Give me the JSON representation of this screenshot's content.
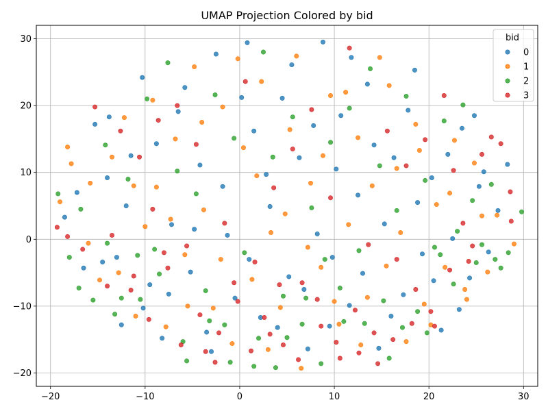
{
  "chart_data": {
    "type": "scatter",
    "title": "UMAP Projection Colored by bid",
    "xlabel": "",
    "ylabel": "",
    "xlim": [
      -21.5,
      31.5
    ],
    "ylim": [
      -22,
      32
    ],
    "x_ticks": [
      -20,
      -10,
      0,
      10,
      20,
      30
    ],
    "y_ticks": [
      -20,
      -10,
      0,
      10,
      20,
      30
    ],
    "x_tick_labels": [
      "−20",
      "−10",
      "0",
      "10",
      "20",
      "30"
    ],
    "y_tick_labels": [
      "−20",
      "−10",
      "0",
      "10",
      "20",
      "30"
    ],
    "grid": true,
    "legend": {
      "title": "bid",
      "position": "top-right"
    },
    "series": [
      {
        "name": "0",
        "color": "#1f77b4",
        "points": [
          [
            -18.5,
            3.3
          ],
          [
            -16.5,
            -4.3
          ],
          [
            -15.3,
            17.2
          ],
          [
            -14.0,
            9.2
          ],
          [
            -13.0,
            -2.7
          ],
          [
            -12.5,
            -12.8
          ],
          [
            -11.5,
            12.5
          ],
          [
            -10.3,
            24.2
          ],
          [
            -9.5,
            -6.8
          ],
          [
            -8.2,
            -14.8
          ],
          [
            -7.2,
            2.2
          ],
          [
            -6.5,
            19.1
          ],
          [
            -5.2,
            -4.9
          ],
          [
            -4.2,
            11.1
          ],
          [
            -3.5,
            -13.9
          ],
          [
            -2.5,
            27.7
          ],
          [
            -1.3,
            0.6
          ],
          [
            -0.5,
            -8.8
          ],
          [
            0.8,
            29.4
          ],
          [
            1.5,
            16.2
          ],
          [
            2.2,
            -11.7
          ],
          [
            3.2,
            4.9
          ],
          [
            4.5,
            21.1
          ],
          [
            5.2,
            -5.6
          ],
          [
            6.3,
            12.2
          ],
          [
            7.2,
            -16.4
          ],
          [
            8.2,
            0.8
          ],
          [
            8.8,
            29.5
          ],
          [
            9.8,
            -2.7
          ],
          [
            10.7,
            18.5
          ],
          [
            11.6,
            -9.9
          ],
          [
            12.5,
            6.6
          ],
          [
            13.5,
            23.2
          ],
          [
            14.7,
            -16.3
          ],
          [
            15.3,
            2.3
          ],
          [
            16.3,
            12.2
          ],
          [
            17.3,
            -8.3
          ],
          [
            18.5,
            25.3
          ],
          [
            19.3,
            -2.2
          ],
          [
            20.3,
            9.2
          ],
          [
            21.3,
            -13.6
          ],
          [
            22.5,
            0.1
          ],
          [
            23.5,
            16.6
          ],
          [
            24.3,
            -5.8
          ],
          [
            25.3,
            7.9
          ],
          [
            26.3,
            -1.9
          ],
          [
            27.3,
            4.3
          ],
          [
            28.3,
            11.2
          ],
          [
            -17.2,
            7.0
          ],
          [
            -14.5,
            -3.4
          ],
          [
            -13.8,
            18.3
          ],
          [
            -12.0,
            5.0
          ],
          [
            -10.2,
            -10.3
          ],
          [
            -8.8,
            14.3
          ],
          [
            -7.5,
            -8.2
          ],
          [
            -5.8,
            22.7
          ],
          [
            -4.8,
            1.5
          ],
          [
            -3.0,
            -16.8
          ],
          [
            -1.8,
            7.9
          ],
          [
            0.2,
            21.2
          ],
          [
            1.0,
            -3.0
          ],
          [
            2.8,
            9.7
          ],
          [
            4.0,
            -13.2
          ],
          [
            5.5,
            26.1
          ],
          [
            6.8,
            -7.5
          ],
          [
            7.8,
            17.0
          ],
          [
            9.5,
            -13.0
          ],
          [
            10.2,
            10.5
          ],
          [
            11.8,
            27.2
          ],
          [
            13.0,
            -5.1
          ],
          [
            14.2,
            14.1
          ],
          [
            16.0,
            -11.5
          ],
          [
            17.8,
            19.3
          ],
          [
            18.8,
            5.5
          ],
          [
            20.5,
            -6.2
          ],
          [
            22.0,
            12.7
          ],
          [
            23.2,
            -10.5
          ],
          [
            24.8,
            18.5
          ],
          [
            25.8,
            10.1
          ]
        ]
      },
      {
        "name": "1",
        "color": "#ff7f0e",
        "points": [
          [
            -19.0,
            5.6
          ],
          [
            -17.8,
            11.3
          ],
          [
            -16.0,
            -0.6
          ],
          [
            -14.8,
            -6.1
          ],
          [
            -13.5,
            12.3
          ],
          [
            -12.2,
            18.2
          ],
          [
            -11.0,
            -11.5
          ],
          [
            -10.0,
            1.9
          ],
          [
            -8.8,
            7.8
          ],
          [
            -7.8,
            -13.1
          ],
          [
            -6.8,
            15.0
          ],
          [
            -5.8,
            -2.3
          ],
          [
            -4.8,
            25.8
          ],
          [
            -3.8,
            4.4
          ],
          [
            -2.8,
            -10.3
          ],
          [
            -1.8,
            19.8
          ],
          [
            -0.8,
            -15.6
          ],
          [
            0.4,
            13.7
          ],
          [
            1.3,
            -6.0
          ],
          [
            2.3,
            23.6
          ],
          [
            3.3,
            1.0
          ],
          [
            4.3,
            -10.2
          ],
          [
            5.3,
            16.4
          ],
          [
            6.5,
            -19.3
          ],
          [
            7.5,
            8.4
          ],
          [
            8.6,
            -4.2
          ],
          [
            9.6,
            21.5
          ],
          [
            10.5,
            -12.7
          ],
          [
            11.5,
            2.2
          ],
          [
            12.5,
            15.2
          ],
          [
            13.5,
            -8.7
          ],
          [
            14.8,
            27.2
          ],
          [
            15.5,
            -4.0
          ],
          [
            16.6,
            10.6
          ],
          [
            17.6,
            -15.3
          ],
          [
            18.6,
            17.2
          ],
          [
            19.5,
            -9.7
          ],
          [
            20.8,
            5.2
          ],
          [
            21.7,
            -4.2
          ],
          [
            22.7,
            14.8
          ],
          [
            23.8,
            -7.5
          ],
          [
            24.8,
            11.4
          ],
          [
            25.6,
            3.5
          ],
          [
            27.2,
            3.6
          ],
          [
            29.0,
            -0.7
          ],
          [
            -18.2,
            13.8
          ],
          [
            -15.8,
            8.4
          ],
          [
            -12.8,
            -5.0
          ],
          [
            -11.2,
            8.0
          ],
          [
            -9.2,
            20.8
          ],
          [
            -7.3,
            3.0
          ],
          [
            -5.5,
            -10.0
          ],
          [
            -4.0,
            17.5
          ],
          [
            -2.0,
            -3.0
          ],
          [
            -0.2,
            27.0
          ],
          [
            1.8,
            9.5
          ],
          [
            3.0,
            -16.5
          ],
          [
            4.8,
            3.8
          ],
          [
            6.0,
            27.4
          ],
          [
            7.2,
            -1.2
          ],
          [
            8.8,
            12.5
          ],
          [
            10.0,
            -9.3
          ],
          [
            11.2,
            22.0
          ],
          [
            12.8,
            -15.8
          ],
          [
            14.0,
            8.0
          ],
          [
            15.8,
            23.0
          ],
          [
            17.0,
            1.0
          ],
          [
            19.0,
            13.3
          ],
          [
            20.2,
            -12.8
          ],
          [
            22.2,
            6.9
          ],
          [
            24.0,
            -9.0
          ],
          [
            26.2,
            -4.9
          ]
        ]
      },
      {
        "name": "2",
        "color": "#2ca02c",
        "points": [
          [
            -19.2,
            6.8
          ],
          [
            -18.0,
            -2.7
          ],
          [
            -16.8,
            4.5
          ],
          [
            -15.5,
            -9.1
          ],
          [
            -14.2,
            14.1
          ],
          [
            -13.2,
            -11.2
          ],
          [
            -11.8,
            9.0
          ],
          [
            -10.8,
            -2.4
          ],
          [
            -9.8,
            21.0
          ],
          [
            -8.5,
            -5.2
          ],
          [
            -7.6,
            26.4
          ],
          [
            -6.6,
            10.2
          ],
          [
            -5.6,
            -18.2
          ],
          [
            -4.6,
            6.8
          ],
          [
            -3.6,
            -7.7
          ],
          [
            -2.6,
            21.6
          ],
          [
            -1.6,
            -12.8
          ],
          [
            -0.6,
            15.1
          ],
          [
            0.5,
            -2.0
          ],
          [
            1.5,
            -19.0
          ],
          [
            2.5,
            28.0
          ],
          [
            3.5,
            12.3
          ],
          [
            4.6,
            -8.5
          ],
          [
            5.6,
            18.3
          ],
          [
            6.6,
            -12.7
          ],
          [
            7.6,
            4.7
          ],
          [
            8.6,
            -18.6
          ],
          [
            9.6,
            14.5
          ],
          [
            10.6,
            -7.3
          ],
          [
            11.6,
            19.6
          ],
          [
            12.6,
            -1.7
          ],
          [
            13.8,
            25.5
          ],
          [
            14.8,
            11.0
          ],
          [
            15.8,
            -17.8
          ],
          [
            16.6,
            4.3
          ],
          [
            17.6,
            21.4
          ],
          [
            18.8,
            -10.8
          ],
          [
            19.6,
            8.8
          ],
          [
            20.6,
            -1.2
          ],
          [
            21.6,
            17.7
          ],
          [
            22.6,
            -6.7
          ],
          [
            23.6,
            20.1
          ],
          [
            24.6,
            5.8
          ],
          [
            25.6,
            -0.8
          ],
          [
            26.6,
            8.2
          ],
          [
            27.6,
            -4.3
          ],
          [
            28.4,
            -2.0
          ],
          [
            29.8,
            4.1
          ],
          [
            -17.0,
            -7.3
          ],
          [
            -14.0,
            -0.6
          ],
          [
            -12.5,
            -8.8
          ],
          [
            -10.5,
            -9.0
          ],
          [
            -9.0,
            -1.5
          ],
          [
            -6.0,
            -15.3
          ],
          [
            -3.2,
            -12.2
          ],
          [
            -1.0,
            -18.4
          ],
          [
            2.0,
            -14.8
          ],
          [
            3.8,
            -19.2
          ],
          [
            5.0,
            -14.7
          ],
          [
            7.0,
            -8.8
          ],
          [
            9.0,
            -3.0
          ],
          [
            11.0,
            -12.3
          ],
          [
            13.2,
            -12.6
          ],
          [
            15.2,
            -9.2
          ],
          [
            17.2,
            -13.2
          ],
          [
            19.8,
            -14.0
          ],
          [
            21.2,
            -2.3
          ],
          [
            23.0,
            1.2
          ],
          [
            25.0,
            -3.5
          ],
          [
            27.0,
            -3.0
          ]
        ]
      },
      {
        "name": "3",
        "color": "#d62728",
        "points": [
          [
            -19.3,
            1.8
          ],
          [
            -18.2,
            0.4
          ],
          [
            -16.6,
            -1.5
          ],
          [
            -15.3,
            19.8
          ],
          [
            -14.0,
            -7.0
          ],
          [
            -12.6,
            16.2
          ],
          [
            -11.5,
            -7.6
          ],
          [
            -10.6,
            12.3
          ],
          [
            -9.6,
            -12.0
          ],
          [
            -8.6,
            17.8
          ],
          [
            -7.6,
            -4.3
          ],
          [
            -6.6,
            20.0
          ],
          [
            -5.6,
            -1.0
          ],
          [
            -4.6,
            14.2
          ],
          [
            -3.6,
            -16.8
          ],
          [
            -2.6,
            -18.4
          ],
          [
            -1.6,
            2.4
          ],
          [
            -0.6,
            -6.5
          ],
          [
            0.6,
            23.6
          ],
          [
            1.6,
            -3.4
          ],
          [
            2.6,
            -11.7
          ],
          [
            3.6,
            7.7
          ],
          [
            4.6,
            -15.8
          ],
          [
            5.6,
            13.5
          ],
          [
            6.6,
            -6.5
          ],
          [
            7.6,
            19.4
          ],
          [
            8.6,
            -13.0
          ],
          [
            9.6,
            6.2
          ],
          [
            10.6,
            -17.8
          ],
          [
            11.6,
            28.6
          ],
          [
            12.6,
            -17.0
          ],
          [
            13.6,
            -0.8
          ],
          [
            14.6,
            -18.6
          ],
          [
            15.6,
            16.2
          ],
          [
            16.6,
            -3.0
          ],
          [
            17.6,
            11.0
          ],
          [
            18.6,
            -7.5
          ],
          [
            19.6,
            14.9
          ],
          [
            20.6,
            -13.0
          ],
          [
            21.6,
            21.5
          ],
          [
            22.6,
            10.3
          ],
          [
            23.6,
            2.4
          ],
          [
            24.6,
            -1.0
          ],
          [
            25.6,
            12.7
          ],
          [
            26.6,
            15.3
          ],
          [
            27.6,
            14.3
          ],
          [
            28.6,
            7.1
          ],
          [
            28.7,
            2.7
          ],
          [
            -13.5,
            0.6
          ],
          [
            -11.2,
            -5.5
          ],
          [
            -9.2,
            4.5
          ],
          [
            -8.0,
            -2.0
          ],
          [
            -6.2,
            -15.8
          ],
          [
            -4.2,
            -11.3
          ],
          [
            -2.2,
            -14.0
          ],
          [
            -0.2,
            -9.3
          ],
          [
            1.2,
            -16.7
          ],
          [
            3.2,
            -14.2
          ],
          [
            4.2,
            -6.8
          ],
          [
            6.2,
            -18.0
          ],
          [
            8.2,
            -9.0
          ],
          [
            10.2,
            -15.4
          ],
          [
            12.2,
            -10.6
          ],
          [
            14.2,
            -14.0
          ],
          [
            16.2,
            -15.0
          ],
          [
            18.2,
            -12.6
          ],
          [
            20.2,
            -10.8
          ],
          [
            22.2,
            -4.6
          ],
          [
            24.2,
            -3.3
          ]
        ]
      }
    ]
  }
}
